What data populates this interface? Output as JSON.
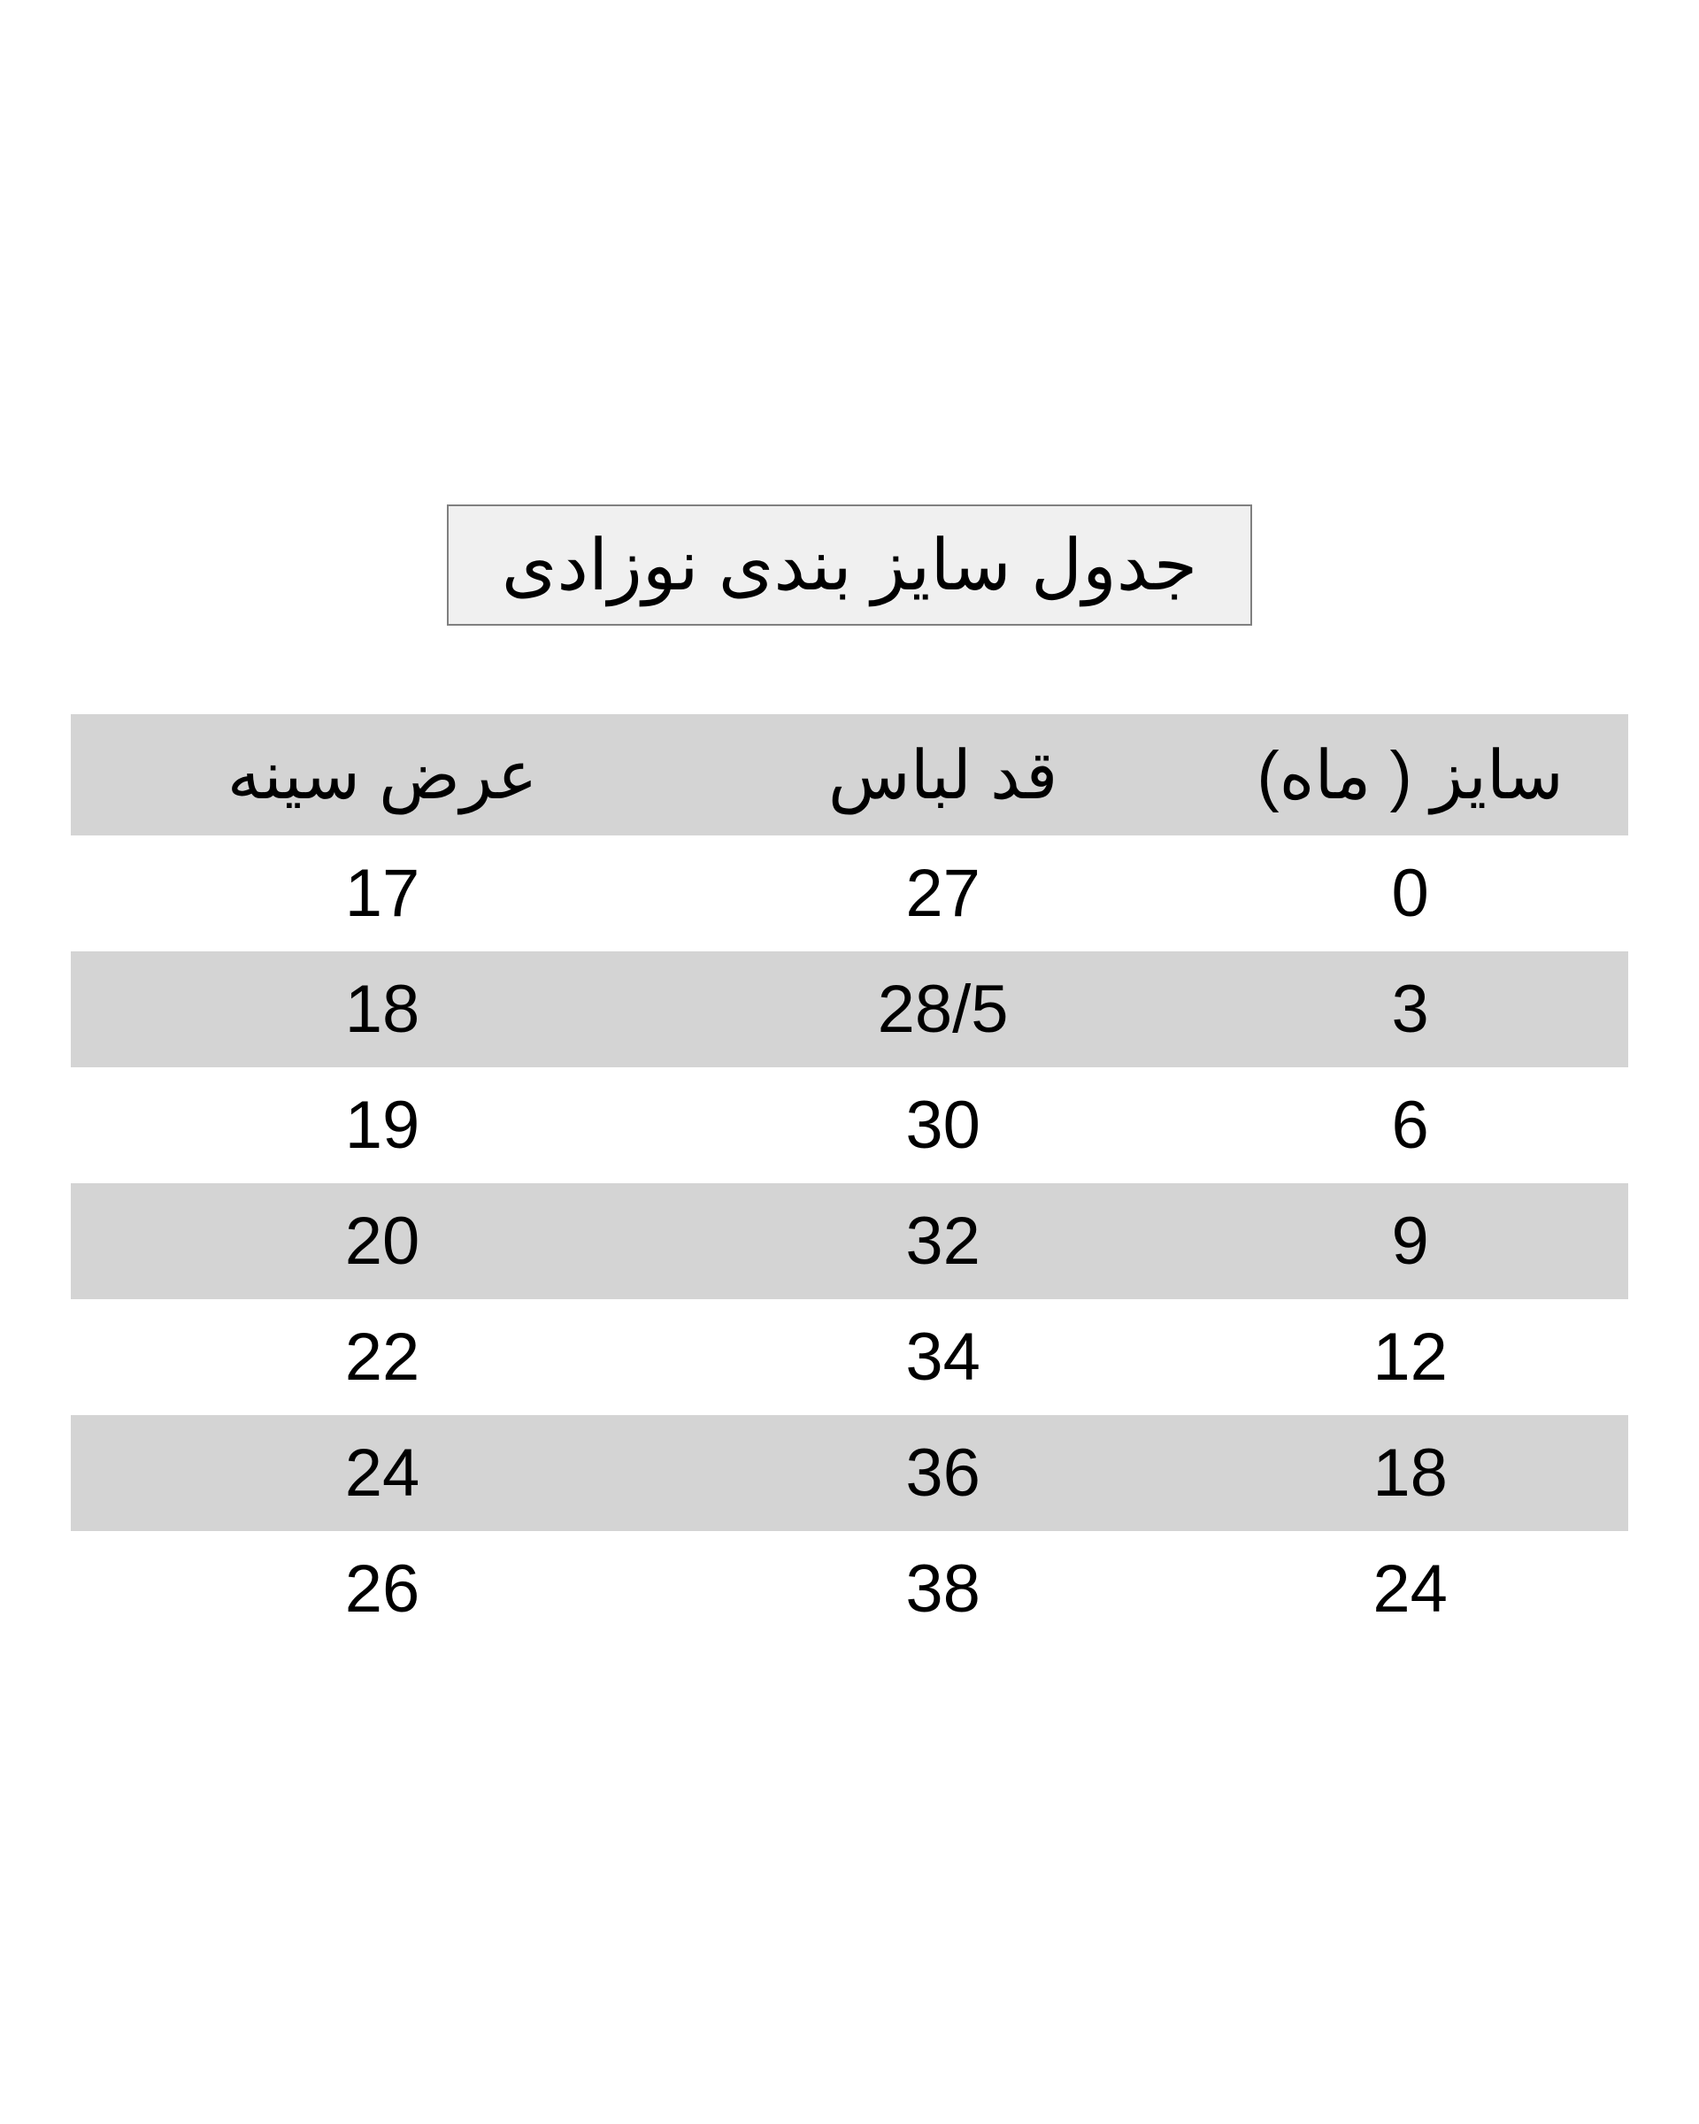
{
  "title": "جدول سایز بندی نوزادی",
  "table": {
    "type": "table",
    "columns": [
      "سایز ( ماه)",
      "قد لباس",
      "عرض سینه"
    ],
    "rows": [
      [
        "0",
        "27",
        "17"
      ],
      [
        "3",
        "28/5",
        "18"
      ],
      [
        "6",
        "30",
        "19"
      ],
      [
        "9",
        "32",
        "20"
      ],
      [
        "12",
        "34",
        "22"
      ],
      [
        "18",
        "36",
        "24"
      ],
      [
        "24",
        "38",
        "26"
      ]
    ],
    "header_bg_color": "#d4d4d4",
    "row_odd_bg_color": "#ffffff",
    "row_even_bg_color": "#d4d4d4",
    "text_color": "#000000",
    "header_fontsize": 76,
    "cell_fontsize": 76,
    "title_fontsize": 80,
    "title_bg_color": "#f0f0f0",
    "title_border_color": "#808080",
    "column_widths": [
      "28%",
      "32%",
      "40%"
    ],
    "background_color": "#ffffff"
  }
}
